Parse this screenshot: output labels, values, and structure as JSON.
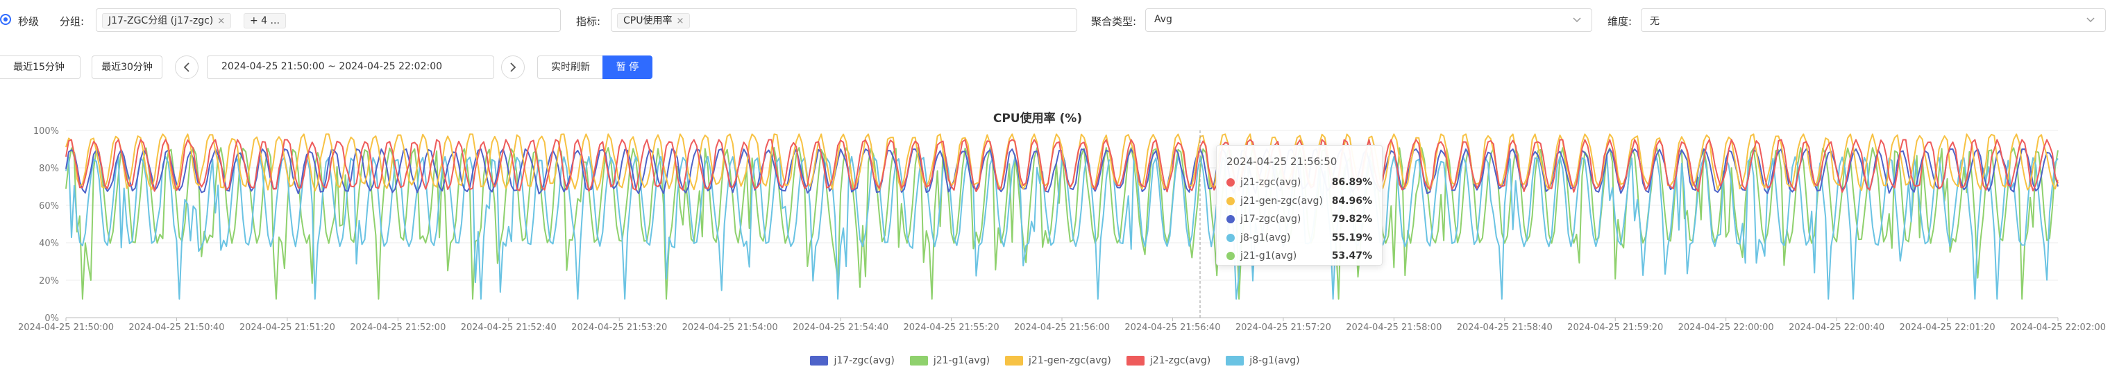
{
  "toolbar": {
    "granularity_label": "秒级",
    "group_label": "分组:",
    "group_tag": "J17-ZGC分组 (j17-zgc)",
    "group_more": "+ 4 ...",
    "metric_label": "指标:",
    "metric_tag": "CPU使用率",
    "agg_label": "聚合类型:",
    "agg_value": "Avg",
    "dim_label": "维度:",
    "dim_value": "无"
  },
  "timebar": {
    "last15": "最近15分钟",
    "last30": "最近30分钟",
    "range": "2024-04-25 21:50:00  ~  2024-04-25 22:02:00",
    "realtime": "实时刷新",
    "pause": "暂 停"
  },
  "chart_data": {
    "type": "line",
    "title": "CPU使用率 (%)",
    "xlabel": "",
    "ylabel": "",
    "ylim": [
      0,
      100
    ],
    "yticks": [
      "0%",
      "20%",
      "40%",
      "60%",
      "80%",
      "100%"
    ],
    "xticks": [
      "2024-04-25 21:50:00",
      "2024-04-25 21:50:40",
      "2024-04-25 21:51:20",
      "2024-04-25 21:52:00",
      "2024-04-25 21:52:40",
      "2024-04-25 21:53:20",
      "2024-04-25 21:54:00",
      "2024-04-25 21:54:40",
      "2024-04-25 21:55:20",
      "2024-04-25 21:56:00",
      "2024-04-25 21:56:40",
      "2024-04-25 21:57:20",
      "2024-04-25 21:58:00",
      "2024-04-25 21:58:40",
      "2024-04-25 21:59:20",
      "2024-04-25 22:00:00",
      "2024-04-25 22:00:40",
      "2024-04-25 22:01:20",
      "2024-04-25 22:02:00"
    ],
    "grid": true,
    "legend_position": "bottom",
    "series": [
      {
        "name": "j17-zgc(avg)",
        "color": "#4e63c9",
        "approx_min": 60,
        "approx_max": 90
      },
      {
        "name": "j21-g1(avg)",
        "color": "#8fd16d",
        "approx_min": 10,
        "approx_max": 95
      },
      {
        "name": "j21-gen-zgc(avg)",
        "color": "#f7c244",
        "approx_min": 60,
        "approx_max": 98
      },
      {
        "name": "j21-zgc(avg)",
        "color": "#ee5b5b",
        "approx_min": 60,
        "approx_max": 95
      },
      {
        "name": "j8-g1(avg)",
        "color": "#6ac3e3",
        "approx_min": 10,
        "approx_max": 90
      }
    ],
    "tooltip": {
      "time": "2024-04-25 21:56:50",
      "rows": [
        {
          "name": "j21-zgc(avg)",
          "value": "86.89%",
          "color": "#ee5b5b"
        },
        {
          "name": "j21-gen-zgc(avg)",
          "value": "84.96%",
          "color": "#f7c244"
        },
        {
          "name": "j17-zgc(avg)",
          "value": "79.82%",
          "color": "#4e63c9"
        },
        {
          "name": "j8-g1(avg)",
          "value": "55.19%",
          "color": "#6ac3e3"
        },
        {
          "name": "j21-g1(avg)",
          "value": "53.47%",
          "color": "#8fd16d"
        }
      ]
    }
  }
}
